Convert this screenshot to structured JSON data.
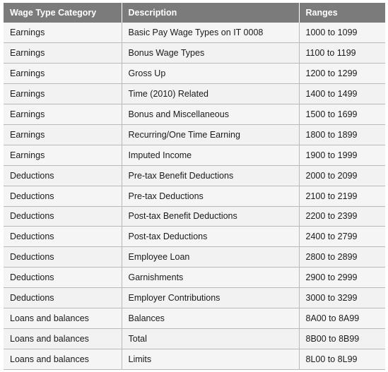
{
  "table": {
    "headers": [
      "Wage Type Category",
      "Description",
      "Ranges"
    ],
    "rows": [
      [
        "Earnings",
        "Basic Pay Wage Types on IT 0008",
        "1000 to 1099"
      ],
      [
        "Earnings",
        "Bonus Wage Types",
        "1100 to 1199"
      ],
      [
        "Earnings",
        "Gross Up",
        "1200 to 1299"
      ],
      [
        "Earnings",
        "Time (2010) Related",
        "1400 to 1499"
      ],
      [
        "Earnings",
        "Bonus and Miscellaneous",
        "1500 to 1699"
      ],
      [
        "Earnings",
        "Recurring/One Time Earning",
        "1800 to 1899"
      ],
      [
        "Earnings",
        "Imputed Income",
        "1900 to 1999"
      ],
      [
        "Deductions",
        "Pre-tax Benefit Deductions",
        "2000 to 2099"
      ],
      [
        "Deductions",
        "Pre-tax Deductions",
        "2100 to 2199"
      ],
      [
        "Deductions",
        "Post-tax Benefit Deductions",
        "2200 to 2399"
      ],
      [
        "Deductions",
        "Post-tax Deductions",
        "2400 to 2799"
      ],
      [
        "Deductions",
        "Employee Loan",
        "2800 to 2899"
      ],
      [
        "Deductions",
        "Garnishments",
        "2900 to 2999"
      ],
      [
        "Deductions",
        "Employer Contributions",
        "3000 to 3299"
      ],
      [
        "Loans and balances",
        "Balances",
        "8A00 to 8A99"
      ],
      [
        "Loans and balances",
        "Total",
        "8B00 to 8B99"
      ],
      [
        "Loans and balances",
        "Limits",
        "8L00 to 8L99"
      ]
    ]
  }
}
